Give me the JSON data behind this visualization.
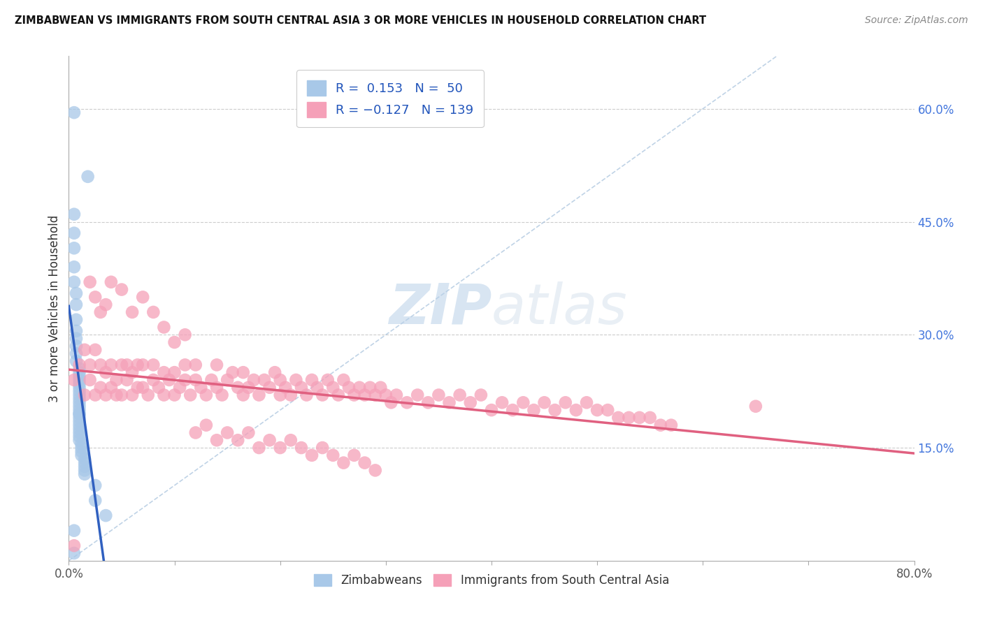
{
  "title": "ZIMBABWEAN VS IMMIGRANTS FROM SOUTH CENTRAL ASIA 3 OR MORE VEHICLES IN HOUSEHOLD CORRELATION CHART",
  "source": "Source: ZipAtlas.com",
  "ylabel_label": "3 or more Vehicles in Household",
  "right_yticks": [
    "60.0%",
    "45.0%",
    "30.0%",
    "15.0%"
  ],
  "right_ytick_vals": [
    0.6,
    0.45,
    0.3,
    0.15
  ],
  "xlim": [
    0.0,
    0.8
  ],
  "ylim": [
    0.0,
    0.67
  ],
  "legend_blue_r": "R =",
  "legend_blue_r_val": "0.153",
  "legend_blue_n": "N =",
  "legend_blue_n_val": "50",
  "legend_pink_r": "R =",
  "legend_pink_r_val": "-0.127",
  "legend_pink_n": "N =",
  "legend_pink_n_val": "139",
  "blue_color": "#a8c8e8",
  "pink_color": "#f5a0b8",
  "blue_line_color": "#3060c0",
  "pink_line_color": "#e06080",
  "watermark_zip": "ZIP",
  "watermark_atlas": "atlas",
  "background_color": "#ffffff",
  "grid_color": "#dddddd",
  "blue_x": [
    0.005,
    0.018,
    0.005,
    0.005,
    0.005,
    0.005,
    0.005,
    0.007,
    0.007,
    0.007,
    0.007,
    0.007,
    0.007,
    0.007,
    0.007,
    0.01,
    0.01,
    0.01,
    0.01,
    0.01,
    0.01,
    0.01,
    0.01,
    0.01,
    0.01,
    0.01,
    0.01,
    0.01,
    0.01,
    0.01,
    0.01,
    0.01,
    0.01,
    0.01,
    0.01,
    0.01,
    0.012,
    0.012,
    0.012,
    0.012,
    0.015,
    0.015,
    0.015,
    0.015,
    0.015,
    0.025,
    0.025,
    0.035,
    0.005,
    0.005
  ],
  "blue_y": [
    0.595,
    0.51,
    0.46,
    0.435,
    0.415,
    0.39,
    0.37,
    0.355,
    0.34,
    0.32,
    0.305,
    0.295,
    0.285,
    0.275,
    0.265,
    0.255,
    0.25,
    0.245,
    0.24,
    0.235,
    0.23,
    0.225,
    0.22,
    0.215,
    0.21,
    0.205,
    0.2,
    0.195,
    0.195,
    0.19,
    0.185,
    0.18,
    0.175,
    0.17,
    0.165,
    0.16,
    0.155,
    0.15,
    0.145,
    0.14,
    0.135,
    0.13,
    0.125,
    0.12,
    0.115,
    0.1,
    0.08,
    0.06,
    0.04,
    0.01
  ],
  "pink_x": [
    0.005,
    0.01,
    0.015,
    0.015,
    0.02,
    0.02,
    0.025,
    0.025,
    0.03,
    0.03,
    0.035,
    0.035,
    0.04,
    0.04,
    0.045,
    0.045,
    0.05,
    0.05,
    0.055,
    0.055,
    0.06,
    0.06,
    0.065,
    0.065,
    0.07,
    0.07,
    0.075,
    0.08,
    0.08,
    0.085,
    0.09,
    0.09,
    0.095,
    0.1,
    0.1,
    0.105,
    0.11,
    0.11,
    0.115,
    0.12,
    0.12,
    0.125,
    0.13,
    0.135,
    0.14,
    0.14,
    0.145,
    0.15,
    0.155,
    0.16,
    0.165,
    0.165,
    0.17,
    0.175,
    0.18,
    0.185,
    0.19,
    0.195,
    0.2,
    0.2,
    0.205,
    0.21,
    0.215,
    0.22,
    0.225,
    0.23,
    0.235,
    0.24,
    0.245,
    0.25,
    0.255,
    0.26,
    0.265,
    0.27,
    0.275,
    0.28,
    0.285,
    0.29,
    0.295,
    0.3,
    0.305,
    0.31,
    0.32,
    0.33,
    0.34,
    0.35,
    0.36,
    0.37,
    0.38,
    0.39,
    0.4,
    0.41,
    0.42,
    0.43,
    0.44,
    0.45,
    0.46,
    0.47,
    0.48,
    0.49,
    0.5,
    0.51,
    0.52,
    0.53,
    0.54,
    0.55,
    0.56,
    0.57,
    0.02,
    0.025,
    0.03,
    0.035,
    0.04,
    0.05,
    0.06,
    0.07,
    0.08,
    0.09,
    0.1,
    0.11,
    0.12,
    0.13,
    0.14,
    0.15,
    0.16,
    0.17,
    0.18,
    0.19,
    0.2,
    0.21,
    0.22,
    0.23,
    0.24,
    0.25,
    0.26,
    0.27,
    0.28,
    0.29,
    0.65,
    0.005
  ],
  "pink_y": [
    0.24,
    0.26,
    0.22,
    0.28,
    0.24,
    0.26,
    0.22,
    0.28,
    0.23,
    0.26,
    0.22,
    0.25,
    0.23,
    0.26,
    0.22,
    0.24,
    0.26,
    0.22,
    0.24,
    0.26,
    0.22,
    0.25,
    0.23,
    0.26,
    0.23,
    0.26,
    0.22,
    0.24,
    0.26,
    0.23,
    0.22,
    0.25,
    0.24,
    0.22,
    0.25,
    0.23,
    0.24,
    0.26,
    0.22,
    0.24,
    0.26,
    0.23,
    0.22,
    0.24,
    0.26,
    0.23,
    0.22,
    0.24,
    0.25,
    0.23,
    0.22,
    0.25,
    0.23,
    0.24,
    0.22,
    0.24,
    0.23,
    0.25,
    0.22,
    0.24,
    0.23,
    0.22,
    0.24,
    0.23,
    0.22,
    0.24,
    0.23,
    0.22,
    0.24,
    0.23,
    0.22,
    0.24,
    0.23,
    0.22,
    0.23,
    0.22,
    0.23,
    0.22,
    0.23,
    0.22,
    0.21,
    0.22,
    0.21,
    0.22,
    0.21,
    0.22,
    0.21,
    0.22,
    0.21,
    0.22,
    0.2,
    0.21,
    0.2,
    0.21,
    0.2,
    0.21,
    0.2,
    0.21,
    0.2,
    0.21,
    0.2,
    0.2,
    0.19,
    0.19,
    0.19,
    0.19,
    0.18,
    0.18,
    0.37,
    0.35,
    0.33,
    0.34,
    0.37,
    0.36,
    0.33,
    0.35,
    0.33,
    0.31,
    0.29,
    0.3,
    0.17,
    0.18,
    0.16,
    0.17,
    0.16,
    0.17,
    0.15,
    0.16,
    0.15,
    0.16,
    0.15,
    0.14,
    0.15,
    0.14,
    0.13,
    0.14,
    0.13,
    0.12,
    0.205,
    0.02
  ]
}
